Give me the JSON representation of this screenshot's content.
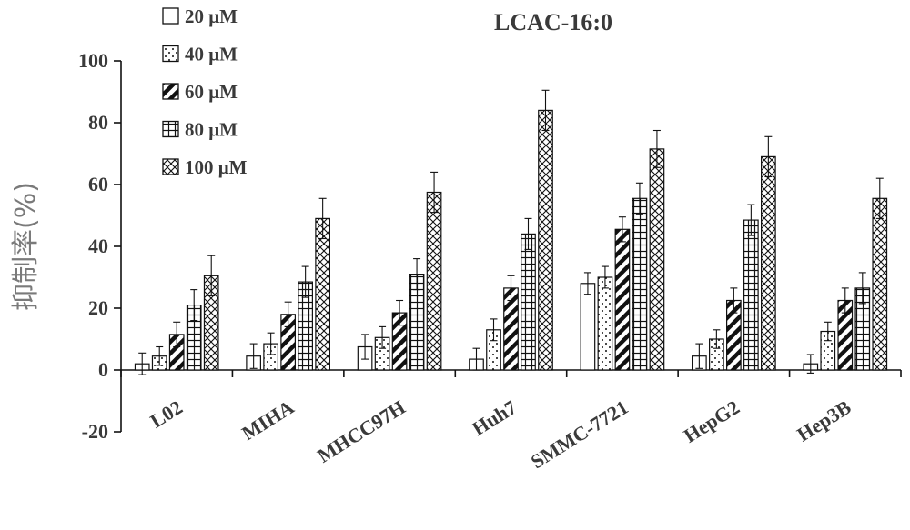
{
  "chart_data": {
    "type": "bar",
    "title": "LCAC-16:0",
    "ylabel": "抑制率(%)",
    "xlabel": "",
    "ylim": [
      -20,
      100
    ],
    "yticks": [
      -20,
      0,
      20,
      40,
      60,
      80,
      100
    ],
    "ytick_labels": [
      "-20",
      "0",
      "20",
      "40",
      "60",
      "80",
      "100"
    ],
    "categories": [
      "L02",
      "MIHA",
      "MHCC97H",
      "Huh7",
      "SMMC-7721",
      "HepG2",
      "Hep3B"
    ],
    "series": [
      {
        "name": "20 μM",
        "pattern": "empty",
        "values": [
          2,
          4.5,
          7.5,
          3.5,
          28,
          4.5,
          2
        ],
        "errors": [
          3.5,
          4,
          4,
          3.5,
          3.5,
          4,
          3
        ]
      },
      {
        "name": "40 μM",
        "pattern": "dots",
        "values": [
          4.5,
          8.5,
          10.5,
          13,
          30,
          10,
          12.5
        ],
        "errors": [
          3,
          3.5,
          3.5,
          3.5,
          3.5,
          3,
          3
        ]
      },
      {
        "name": "60 μM",
        "pattern": "diagonal",
        "values": [
          11.5,
          18,
          18.5,
          26.5,
          45.5,
          22.5,
          22.5
        ],
        "errors": [
          4,
          4,
          4,
          4,
          4,
          4,
          4
        ]
      },
      {
        "name": "80 μM",
        "pattern": "grid",
        "values": [
          21,
          28.5,
          31,
          44,
          55.5,
          48.5,
          26.5
        ],
        "errors": [
          5,
          5,
          5,
          5,
          5,
          5,
          5
        ]
      },
      {
        "name": "100 μM",
        "pattern": "crosshatch",
        "values": [
          30.5,
          49,
          57.5,
          84,
          71.5,
          69,
          55.5
        ],
        "errors": [
          6.5,
          6.5,
          6.5,
          6.5,
          6,
          6.5,
          6.5
        ]
      }
    ],
    "legend_position": "top-left",
    "grid": false
  }
}
